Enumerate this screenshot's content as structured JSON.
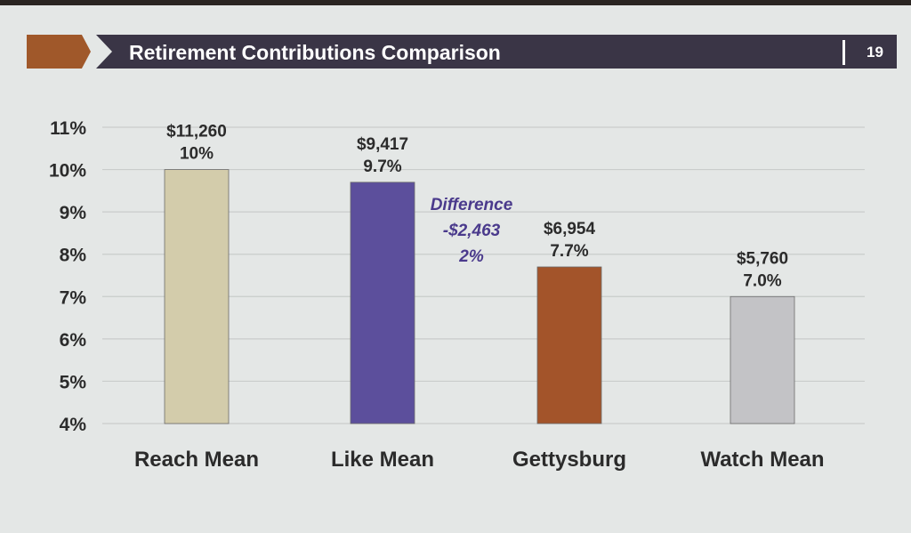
{
  "slide": {
    "title": "Retirement Contributions Comparison",
    "page_number": "19"
  },
  "colors": {
    "banner": "#3a3546",
    "accent": "#a0582a",
    "annotation": "#4a3a8c"
  },
  "chart_data": {
    "type": "bar",
    "title": "Retirement Contributions Comparison",
    "categories": [
      "Reach Mean",
      "Like Mean",
      "Gettysburg",
      "Watch Mean"
    ],
    "values": [
      10,
      9.7,
      7.7,
      7.0
    ],
    "dollar_labels": [
      "$11,260",
      "$9,417",
      "$6,954",
      "$5,760"
    ],
    "percent_labels": [
      "10%",
      "9.7%",
      "7.7%",
      "7.0%"
    ],
    "bar_colors": [
      "#d3ccab",
      "#5c4f9c",
      "#a3542a",
      "#c3c3c6"
    ],
    "ylim": [
      4,
      11
    ],
    "yticks": [
      "4%",
      "5%",
      "6%",
      "7%",
      "8%",
      "9%",
      "10%",
      "11%"
    ],
    "grid": true,
    "xlabel": "",
    "ylabel": "",
    "annotation": {
      "title": "Difference",
      "amount": "-$2,463",
      "percent": "2%"
    }
  }
}
